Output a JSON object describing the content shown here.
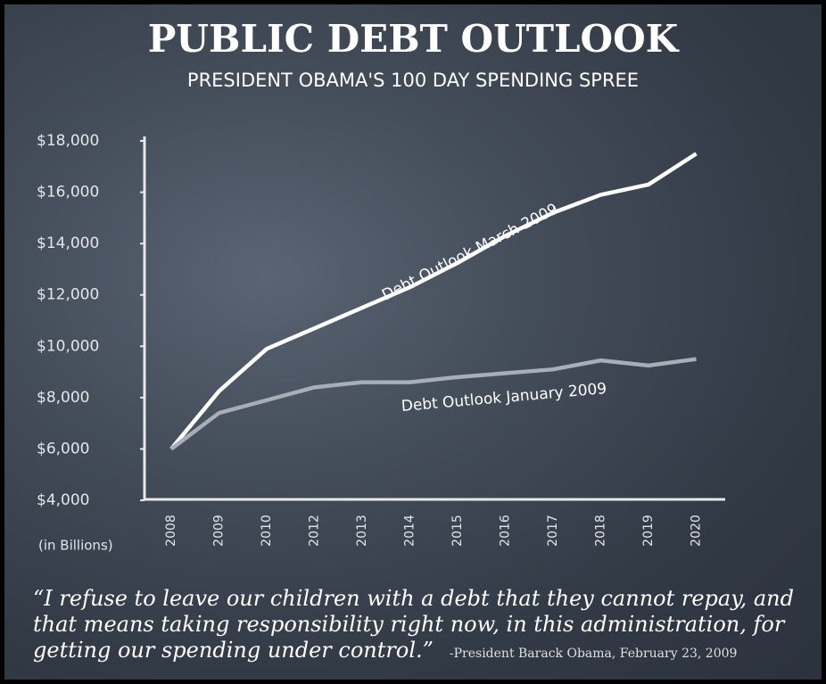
{
  "chart_data": {
    "type": "line",
    "title": "PUBLIC DEBT OUTLOOK",
    "subtitle": "PRESIDENT OBAMA'S 100 DAY SPENDING SPREE",
    "y_axis_label": "(in Billions)",
    "categories": [
      "2008",
      "2009",
      "2010",
      "2012",
      "2013",
      "2014",
      "2015",
      "2016",
      "2017",
      "2018",
      "2019",
      "2020"
    ],
    "series": [
      {
        "name": "Debt Outlook March 2009",
        "color": "#ffffff",
        "values": [
          6000,
          8250,
          9900,
          10700,
          11500,
          12300,
          13250,
          14300,
          15200,
          15900,
          16300,
          17500
        ]
      },
      {
        "name": "Debt Outlook January 2009",
        "color": "#a7aeb8",
        "values": [
          6000,
          7400,
          7900,
          8400,
          8600,
          8600,
          8800,
          8950,
          9100,
          9450,
          9250,
          9500
        ]
      }
    ],
    "ylim": [
      4000,
      18000
    ],
    "yticks": [
      {
        "value": 4000,
        "label": "$4,000"
      },
      {
        "value": 6000,
        "label": "$6,000"
      },
      {
        "value": 8000,
        "label": "$8,000"
      },
      {
        "value": 10000,
        "label": "$10,000"
      },
      {
        "value": 12000,
        "label": "$12,000"
      },
      {
        "value": 14000,
        "label": "$14,000"
      },
      {
        "value": 16000,
        "label": "$16,000"
      },
      {
        "value": 18000,
        "label": "$18,000"
      }
    ],
    "grid": false,
    "quote": "“I refuse to leave our children with a debt that they cannot repay, and that means taking responsibility right now, in this administration, for getting our spending under control.”",
    "attribution": "-President Barack Obama, February 23, 2009"
  }
}
